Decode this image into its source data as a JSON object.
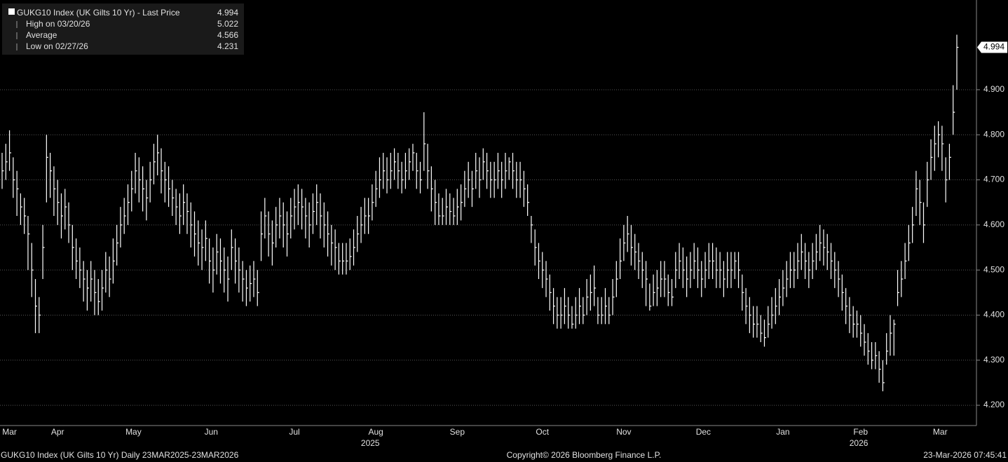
{
  "chart_data": {
    "type": "hlc",
    "series": [
      {
        "name": "GUKG10 Index (UK Gilts 10 Yr) - Last Price",
        "color": "#ffffff",
        "close": [
          4.72,
          4.74,
          4.76,
          4.7,
          4.68,
          4.64,
          4.62,
          4.58,
          4.5,
          4.42,
          4.4,
          4.55,
          4.75,
          4.72,
          4.68,
          4.65,
          4.62,
          4.64,
          4.6,
          4.55,
          4.52,
          4.5,
          4.48,
          4.46,
          4.48,
          4.45,
          4.43,
          4.46,
          4.5,
          4.48,
          4.52,
          4.56,
          4.6,
          4.62,
          4.65,
          4.68,
          4.72,
          4.7,
          4.68,
          4.66,
          4.7,
          4.74,
          4.76,
          4.72,
          4.7,
          4.68,
          4.66,
          4.64,
          4.62,
          4.65,
          4.63,
          4.6,
          4.58,
          4.56,
          4.55,
          4.57,
          4.52,
          4.5,
          4.54,
          4.52,
          4.5,
          4.48,
          4.55,
          4.52,
          4.5,
          4.48,
          4.46,
          4.47,
          4.48,
          4.45,
          4.58,
          4.62,
          4.58,
          4.56,
          4.6,
          4.62,
          4.6,
          4.58,
          4.62,
          4.64,
          4.65,
          4.64,
          4.62,
          4.6,
          4.63,
          4.65,
          4.62,
          4.6,
          4.58,
          4.56,
          4.55,
          4.52,
          4.52,
          4.52,
          4.53,
          4.55,
          4.58,
          4.6,
          4.62,
          4.62,
          4.65,
          4.68,
          4.7,
          4.72,
          4.7,
          4.72,
          4.74,
          4.72,
          4.7,
          4.72,
          4.74,
          4.76,
          4.72,
          4.7,
          4.78,
          4.72,
          4.68,
          4.65,
          4.62,
          4.62,
          4.64,
          4.63,
          4.62,
          4.64,
          4.65,
          4.68,
          4.7,
          4.68,
          4.72,
          4.7,
          4.74,
          4.72,
          4.7,
          4.7,
          4.72,
          4.7,
          4.72,
          4.74,
          4.72,
          4.7,
          4.7,
          4.68,
          4.65,
          4.6,
          4.55,
          4.52,
          4.5,
          4.48,
          4.45,
          4.42,
          4.4,
          4.4,
          4.42,
          4.4,
          4.38,
          4.4,
          4.42,
          4.4,
          4.44,
          4.45,
          4.46,
          4.4,
          4.4,
          4.42,
          4.4,
          4.44,
          4.48,
          4.52,
          4.56,
          4.58,
          4.55,
          4.54,
          4.52,
          4.5,
          4.48,
          4.42,
          4.45,
          4.46,
          4.48,
          4.48,
          4.45,
          4.44,
          4.5,
          4.52,
          4.5,
          4.48,
          4.5,
          4.52,
          4.5,
          4.48,
          4.5,
          4.52,
          4.52,
          4.5,
          4.5,
          4.48,
          4.5,
          4.5,
          4.52,
          4.5,
          4.45,
          4.42,
          4.4,
          4.38,
          4.38,
          4.36,
          4.35,
          4.38,
          4.4,
          4.42,
          4.44,
          4.46,
          4.48,
          4.5,
          4.5,
          4.52,
          4.54,
          4.52,
          4.5,
          4.52,
          4.54,
          4.56,
          4.55,
          4.54,
          4.52,
          4.5,
          4.48,
          4.45,
          4.42,
          4.4,
          4.38,
          4.38,
          4.36,
          4.34,
          4.32,
          4.3,
          4.31,
          4.28,
          4.25,
          4.32,
          4.36,
          4.38,
          4.45,
          4.48,
          4.52,
          4.56,
          4.6,
          4.68,
          4.65,
          4.6,
          4.7,
          4.75,
          4.78,
          4.8,
          4.78,
          4.7,
          4.75,
          4.85,
          4.994
        ],
        "high": [
          4.76,
          4.78,
          4.81,
          4.75,
          4.72,
          4.67,
          4.66,
          4.62,
          4.56,
          4.48,
          4.44,
          4.6,
          4.8,
          4.76,
          4.73,
          4.7,
          4.67,
          4.68,
          4.65,
          4.6,
          4.57,
          4.55,
          4.52,
          4.5,
          4.52,
          4.5,
          4.48,
          4.5,
          4.54,
          4.53,
          4.57,
          4.6,
          4.64,
          4.66,
          4.69,
          4.72,
          4.76,
          4.75,
          4.73,
          4.7,
          4.74,
          4.78,
          4.8,
          4.77,
          4.74,
          4.73,
          4.7,
          4.68,
          4.67,
          4.69,
          4.67,
          4.65,
          4.63,
          4.61,
          4.59,
          4.61,
          4.57,
          4.55,
          4.58,
          4.57,
          4.55,
          4.53,
          4.59,
          4.57,
          4.55,
          4.52,
          4.5,
          4.51,
          4.52,
          4.5,
          4.63,
          4.66,
          4.63,
          4.61,
          4.64,
          4.66,
          4.65,
          4.63,
          4.66,
          4.68,
          4.69,
          4.68,
          4.66,
          4.65,
          4.67,
          4.69,
          4.67,
          4.65,
          4.63,
          4.6,
          4.59,
          4.56,
          4.56,
          4.56,
          4.57,
          4.59,
          4.62,
          4.64,
          4.66,
          4.66,
          4.69,
          4.72,
          4.75,
          4.76,
          4.75,
          4.76,
          4.77,
          4.76,
          4.74,
          4.76,
          4.77,
          4.78,
          4.76,
          4.74,
          4.85,
          4.78,
          4.73,
          4.7,
          4.67,
          4.66,
          4.68,
          4.67,
          4.66,
          4.68,
          4.69,
          4.72,
          4.74,
          4.72,
          4.76,
          4.75,
          4.77,
          4.76,
          4.74,
          4.74,
          4.76,
          4.74,
          4.76,
          4.75,
          4.76,
          4.74,
          4.74,
          4.72,
          4.69,
          4.62,
          4.59,
          4.56,
          4.54,
          4.52,
          4.49,
          4.46,
          4.44,
          4.44,
          4.46,
          4.44,
          4.42,
          4.44,
          4.46,
          4.44,
          4.48,
          4.49,
          4.51,
          4.44,
          4.44,
          4.46,
          4.44,
          4.48,
          4.52,
          4.57,
          4.6,
          4.62,
          4.6,
          4.58,
          4.56,
          4.54,
          4.52,
          4.47,
          4.49,
          4.5,
          4.52,
          4.52,
          4.49,
          4.48,
          4.54,
          4.56,
          4.55,
          4.53,
          4.54,
          4.56,
          4.55,
          4.52,
          4.54,
          4.56,
          4.56,
          4.55,
          4.54,
          4.52,
          4.54,
          4.54,
          4.54,
          4.54,
          4.49,
          4.46,
          4.44,
          4.42,
          4.42,
          4.4,
          4.39,
          4.42,
          4.44,
          4.46,
          4.48,
          4.5,
          4.52,
          4.54,
          4.54,
          4.56,
          4.58,
          4.56,
          4.54,
          4.56,
          4.58,
          4.6,
          4.59,
          4.58,
          4.56,
          4.54,
          4.52,
          4.49,
          4.46,
          4.44,
          4.42,
          4.41,
          4.4,
          4.38,
          4.36,
          4.34,
          4.34,
          4.32,
          4.3,
          4.36,
          4.4,
          4.39,
          4.5,
          4.52,
          4.56,
          4.6,
          4.64,
          4.72,
          4.7,
          4.65,
          4.74,
          4.79,
          4.82,
          4.83,
          4.82,
          4.75,
          4.78,
          4.91,
          5.022
        ],
        "low": [
          4.68,
          4.7,
          4.72,
          4.66,
          4.62,
          4.6,
          4.58,
          4.5,
          4.44,
          4.36,
          4.36,
          4.48,
          4.65,
          4.66,
          4.62,
          4.6,
          4.57,
          4.59,
          4.56,
          4.5,
          4.48,
          4.46,
          4.43,
          4.41,
          4.43,
          4.4,
          4.4,
          4.41,
          4.45,
          4.44,
          4.47,
          4.51,
          4.55,
          4.58,
          4.6,
          4.63,
          4.67,
          4.65,
          4.63,
          4.61,
          4.65,
          4.69,
          4.71,
          4.67,
          4.65,
          4.64,
          4.62,
          4.6,
          4.58,
          4.6,
          4.58,
          4.55,
          4.53,
          4.51,
          4.5,
          4.52,
          4.47,
          4.45,
          4.49,
          4.47,
          4.45,
          4.43,
          4.5,
          4.47,
          4.45,
          4.43,
          4.42,
          4.43,
          4.44,
          4.42,
          4.52,
          4.57,
          4.53,
          4.51,
          4.55,
          4.57,
          4.55,
          4.53,
          4.57,
          4.59,
          4.6,
          4.59,
          4.57,
          4.55,
          4.58,
          4.6,
          4.57,
          4.55,
          4.53,
          4.51,
          4.5,
          4.49,
          4.49,
          4.49,
          4.5,
          4.51,
          4.54,
          4.56,
          4.58,
          4.58,
          4.61,
          4.64,
          4.66,
          4.68,
          4.67,
          4.68,
          4.7,
          4.68,
          4.67,
          4.68,
          4.7,
          4.72,
          4.68,
          4.67,
          4.72,
          4.68,
          4.63,
          4.6,
          4.6,
          4.6,
          4.6,
          4.6,
          4.6,
          4.6,
          4.61,
          4.64,
          4.66,
          4.64,
          4.68,
          4.66,
          4.7,
          4.68,
          4.66,
          4.66,
          4.68,
          4.66,
          4.68,
          4.7,
          4.68,
          4.66,
          4.66,
          4.64,
          4.62,
          4.56,
          4.51,
          4.48,
          4.46,
          4.44,
          4.41,
          4.38,
          4.37,
          4.37,
          4.38,
          4.37,
          4.37,
          4.37,
          4.38,
          4.38,
          4.4,
          4.41,
          4.42,
          4.38,
          4.38,
          4.38,
          4.38,
          4.4,
          4.44,
          4.48,
          4.52,
          4.54,
          4.51,
          4.5,
          4.48,
          4.46,
          4.42,
          4.41,
          4.42,
          4.42,
          4.44,
          4.44,
          4.42,
          4.42,
          4.46,
          4.48,
          4.46,
          4.44,
          4.46,
          4.48,
          4.46,
          4.44,
          4.46,
          4.48,
          4.48,
          4.46,
          4.46,
          4.44,
          4.46,
          4.46,
          4.48,
          4.46,
          4.41,
          4.38,
          4.36,
          4.35,
          4.35,
          4.34,
          4.33,
          4.35,
          4.37,
          4.38,
          4.4,
          4.42,
          4.44,
          4.46,
          4.46,
          4.48,
          4.5,
          4.48,
          4.46,
          4.48,
          4.5,
          4.52,
          4.51,
          4.5,
          4.48,
          4.46,
          4.44,
          4.41,
          4.38,
          4.36,
          4.35,
          4.35,
          4.33,
          4.31,
          4.29,
          4.28,
          4.28,
          4.25,
          4.231,
          4.29,
          4.31,
          4.31,
          4.42,
          4.44,
          4.48,
          4.52,
          4.56,
          4.62,
          4.6,
          4.56,
          4.64,
          4.7,
          4.72,
          4.75,
          4.72,
          4.65,
          4.7,
          4.8,
          4.9
        ]
      }
    ],
    "last_price": 4.994,
    "stats": [
      {
        "label": "High on 03/20/26",
        "value": 5.022
      },
      {
        "label": "Average",
        "value": 4.566
      },
      {
        "label": "Low on 02/27/26",
        "value": 4.231
      }
    ],
    "xlim": [
      0,
      258
    ],
    "xticks": [
      {
        "value": 2,
        "label": "Mar"
      },
      {
        "value": 15,
        "label": "Apr"
      },
      {
        "value": 35.5,
        "label": "May"
      },
      {
        "value": 56.5,
        "label": "Jun"
      },
      {
        "value": 79,
        "label": "Jul"
      },
      {
        "value": 101,
        "label": "Aug"
      },
      {
        "value": 123,
        "label": "Sep"
      },
      {
        "value": 146,
        "label": "Oct"
      },
      {
        "value": 168,
        "label": "Nov"
      },
      {
        "value": 189.5,
        "label": "Dec"
      },
      {
        "value": 211,
        "label": "Jan"
      },
      {
        "value": 232,
        "label": "Feb"
      },
      {
        "value": 253.5,
        "label": "Mar"
      }
    ],
    "year_labels": [
      {
        "value": 99.5,
        "label": "2025"
      },
      {
        "value": 231.5,
        "label": "2026"
      }
    ],
    "ylim": [
      4.155,
      5.099
    ],
    "yticks": [
      {
        "value": 4.2,
        "label": "4.200"
      },
      {
        "value": 4.3,
        "label": "4.300"
      },
      {
        "value": 4.4,
        "label": "4.400"
      },
      {
        "value": 4.5,
        "label": "4.500"
      },
      {
        "value": 4.6,
        "label": "4.600"
      },
      {
        "value": 4.7,
        "label": "4.700"
      },
      {
        "value": 4.8,
        "label": "4.800"
      },
      {
        "value": 4.9,
        "label": "4.900"
      }
    ],
    "grid": true,
    "footer_left": "GUKG10 Index (UK Gilts 10 Yr) Daily 23MAR2025-23MAR2026",
    "copyright": "Copyright© 2026 Bloomberg Finance L.P.",
    "timestamp": "23-Mar-2026 07:45:41"
  }
}
